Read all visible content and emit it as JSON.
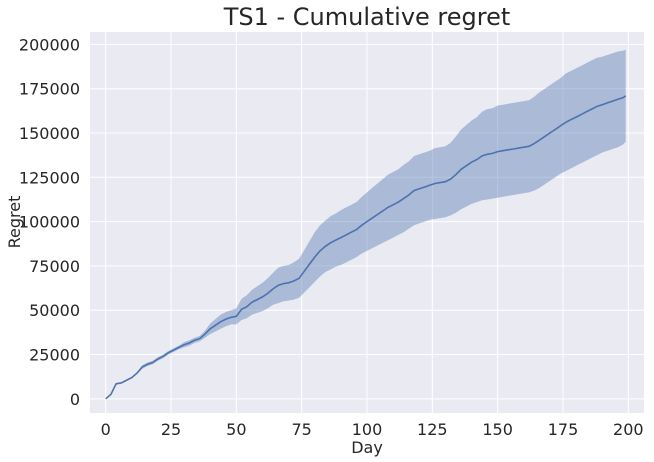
{
  "chart_data": {
    "type": "line",
    "title": "TS1 - Cumulative regret",
    "xlabel": "Day",
    "ylabel": "Regret",
    "xlim": [
      -6,
      206
    ],
    "ylim": [
      -8000,
      207000
    ],
    "x_ticks": [
      0,
      25,
      50,
      75,
      100,
      125,
      150,
      175,
      200
    ],
    "y_ticks": [
      0,
      25000,
      50000,
      75000,
      100000,
      125000,
      150000,
      175000,
      200000
    ],
    "grid": true,
    "legend": "none",
    "colors": {
      "line": "#4c72b0",
      "band": "#4c72b0",
      "background": "#eaeaf2",
      "grid": "#ffffff"
    },
    "series": [
      {
        "x": [
          0,
          2,
          4,
          6,
          8,
          10,
          12,
          14,
          16,
          18,
          20,
          22,
          24,
          26,
          28,
          30,
          32,
          34,
          36,
          38,
          40,
          42,
          44,
          46,
          48,
          50,
          52,
          54,
          56,
          58,
          60,
          62,
          64,
          66,
          68,
          70,
          72,
          74,
          76,
          78,
          80,
          82,
          84,
          86,
          88,
          90,
          92,
          94,
          96,
          98,
          100,
          102,
          104,
          106,
          108,
          110,
          112,
          114,
          116,
          118,
          120,
          122,
          124,
          126,
          128,
          130,
          132,
          134,
          136,
          138,
          140,
          142,
          144,
          146,
          148,
          150,
          152,
          154,
          156,
          158,
          160,
          162,
          164,
          166,
          168,
          170,
          172,
          174,
          176,
          178,
          180,
          182,
          184,
          186,
          188,
          190,
          192,
          194,
          196,
          198,
          199
        ],
        "y": [
          0,
          2500,
          8500,
          9000,
          10500,
          12000,
          14500,
          18000,
          19500,
          20500,
          22500,
          24000,
          26000,
          27500,
          29000,
          30500,
          31500,
          33000,
          34000,
          36500,
          39500,
          41500,
          43500,
          45000,
          46000,
          46500,
          50500,
          52000,
          54500,
          56000,
          57500,
          59500,
          62000,
          64000,
          65000,
          65500,
          66500,
          68000,
          72000,
          76000,
          80000,
          83500,
          86000,
          88000,
          89500,
          91000,
          92500,
          94000,
          95500,
          98000,
          100000,
          102000,
          104000,
          106000,
          108000,
          109500,
          111000,
          113000,
          115000,
          117500,
          118500,
          119500,
          120500,
          121500,
          122000,
          122500,
          124000,
          126500,
          129500,
          131500,
          133500,
          135000,
          137000,
          138000,
          138500,
          139500,
          140000,
          140500,
          141000,
          141500,
          142000,
          142500,
          144000,
          146000,
          148000,
          150000,
          152000,
          154000,
          156000,
          157500,
          159000,
          160500,
          162000,
          163500,
          165000,
          166000,
          167000,
          168000,
          169000,
          170000,
          171000
        ],
        "lower": [
          0,
          2000,
          8000,
          8500,
          10000,
          11500,
          14000,
          17000,
          18500,
          19500,
          21500,
          23000,
          25000,
          26500,
          28000,
          29000,
          30000,
          31500,
          32500,
          34500,
          36500,
          38000,
          39500,
          41000,
          42000,
          42000,
          44500,
          45500,
          47500,
          48500,
          49500,
          51000,
          53000,
          54000,
          55000,
          55500,
          56000,
          57000,
          60000,
          63000,
          66000,
          69000,
          71500,
          73000,
          74500,
          75500,
          77000,
          78500,
          80000,
          82000,
          83500,
          85000,
          86500,
          88000,
          89500,
          91000,
          92500,
          94000,
          96000,
          98000,
          99000,
          100000,
          101000,
          101500,
          102000,
          102500,
          103500,
          105000,
          107000,
          108500,
          110000,
          111000,
          112000,
          112500,
          113000,
          113500,
          114000,
          114500,
          115000,
          115500,
          116000,
          116500,
          117500,
          119000,
          121000,
          123000,
          125000,
          127000,
          128500,
          130000,
          131500,
          133000,
          134500,
          136000,
          137500,
          139000,
          140000,
          141000,
          142000,
          143500,
          145000
        ],
        "upper": [
          0,
          3000,
          9000,
          9500,
          11000,
          12500,
          15000,
          19000,
          20500,
          21500,
          23500,
          25000,
          27000,
          28500,
          30000,
          32000,
          33000,
          34500,
          35500,
          38500,
          42500,
          45000,
          47500,
          49000,
          50000,
          51000,
          56500,
          58500,
          61500,
          63500,
          65500,
          68000,
          71000,
          74000,
          75000,
          75500,
          77000,
          79000,
          84000,
          89000,
          94000,
          98000,
          100500,
          103000,
          104500,
          106500,
          108000,
          109500,
          111000,
          114000,
          116500,
          119000,
          121500,
          124000,
          126500,
          128000,
          129500,
          132000,
          134000,
          137000,
          138000,
          139000,
          140000,
          141500,
          142000,
          142500,
          144500,
          148000,
          152000,
          154500,
          157000,
          159000,
          162000,
          163500,
          164000,
          165500,
          166000,
          166500,
          167000,
          167500,
          168000,
          168500,
          170500,
          173000,
          175000,
          177000,
          179000,
          181000,
          183500,
          185000,
          186500,
          188000,
          189500,
          191000,
          192500,
          193000,
          194000,
          195000,
          196000,
          196500,
          197000
        ]
      }
    ]
  }
}
